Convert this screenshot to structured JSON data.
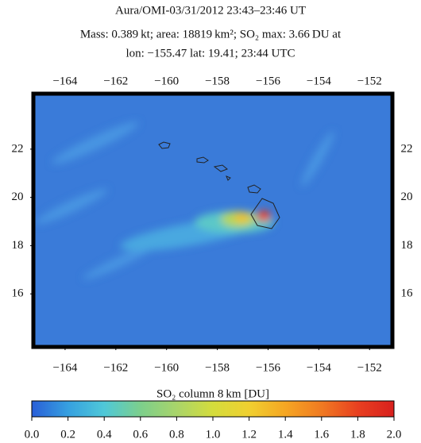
{
  "chart_data": {
    "type": "heatmap",
    "title": [
      "Aura/OMI-03/31/2012 23:43–23:46 UT",
      "Mass: 0.389 kt; area: 18819 km²; SO₂ max: 3.66 DU at",
      "lon: −155.47 lat: 19.41; 23:44 UTC"
    ],
    "xlim": [
      -165.25,
      -151.1
    ],
    "ylim": [
      13.8,
      24.3
    ],
    "xticks": [
      {
        "value": -164,
        "label": "−164"
      },
      {
        "value": -162,
        "label": "−162"
      },
      {
        "value": -160,
        "label": "−160"
      },
      {
        "value": -158,
        "label": "−158"
      },
      {
        "value": -156,
        "label": "−156"
      },
      {
        "value": -154,
        "label": "−154"
      },
      {
        "value": -152,
        "label": "−152"
      }
    ],
    "yticks": [
      16,
      18,
      20,
      22
    ],
    "colorbar": {
      "label": "SO₂ column 8 km [DU]",
      "lim": [
        0,
        2
      ],
      "ticks": [
        {
          "value": 0,
          "label": "0.0"
        },
        0.2,
        0.4,
        0.6,
        0.8,
        {
          "value": 1,
          "label": "1.0"
        },
        1.2,
        1.4,
        1.6,
        1.8,
        {
          "value": 2,
          "label": "2.0"
        }
      ],
      "colors": [
        "#2a5fd8",
        "#36a0e0",
        "#4fc8d8",
        "#7ccf8c",
        "#a9d46a",
        "#d4dc3c",
        "#f0d030",
        "#f5a623",
        "#f07a22",
        "#e84020",
        "#d8201e"
      ]
    }
  }
}
